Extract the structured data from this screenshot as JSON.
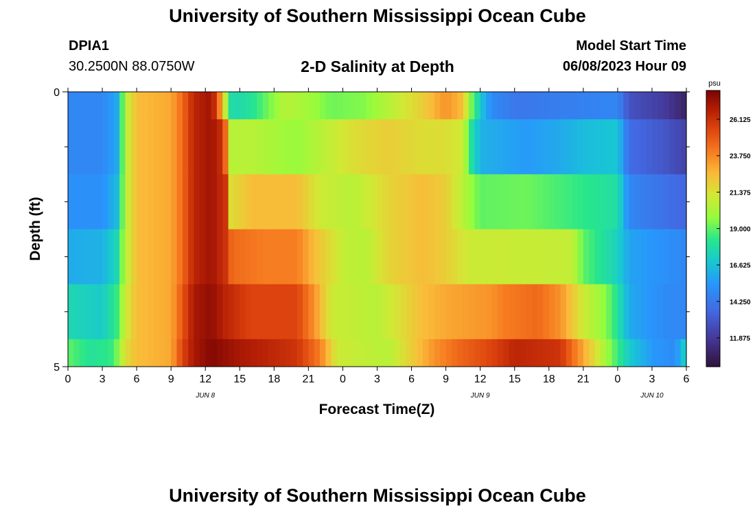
{
  "header": {
    "title": "University of Southern Mississippi Ocean Cube",
    "station_id": "DPIA1",
    "coordinates": "30.2500N  88.0750W",
    "subtitle": "2-D Salinity at Depth",
    "model_start_label": "Model Start Time",
    "model_start_value": "06/08/2023 Hour 09"
  },
  "footer": {
    "title": "University of Southern Mississippi Ocean Cube"
  },
  "chart_data": {
    "type": "heatmap",
    "title": "2-D Salinity at Depth",
    "xlabel": "Forecast Time(Z)",
    "ylabel": "Depth (ft)",
    "x_hours_range": [
      0,
      54
    ],
    "x_tick_hours": [
      0,
      3,
      6,
      9,
      12,
      15,
      18,
      21,
      24,
      27,
      30,
      33,
      36,
      39,
      42,
      45,
      48,
      51,
      54
    ],
    "x_tick_labels": [
      "0",
      "3",
      "6",
      "9",
      "12",
      "15",
      "18",
      "21",
      "0",
      "3",
      "6",
      "9",
      "12",
      "15",
      "18",
      "21",
      "0",
      "3",
      "6"
    ],
    "date_labels": [
      {
        "hour": 12,
        "text": "JUN 8"
      },
      {
        "hour": 36,
        "text": "JUN 9"
      },
      {
        "hour": 51,
        "text": "JUN 10"
      }
    ],
    "y_range": [
      0,
      5
    ],
    "y_tick_labels": [
      "0",
      "5"
    ],
    "depth_layers": 5,
    "colorbar": {
      "unit": "psu",
      "min": 10.0,
      "max": 28.0,
      "tick_values": [
        11.875,
        14.25,
        16.625,
        19.0,
        21.375,
        23.75,
        26.125
      ],
      "tick_labels": [
        "11.875",
        "14.250",
        "16.625",
        "19.000",
        "21.375",
        "23.750",
        "26.125"
      ]
    },
    "salinity_keyframes": [
      [
        [
          0,
          14.8
        ],
        [
          3,
          14.8
        ],
        [
          4.3,
          16.0
        ],
        [
          5,
          20.5
        ],
        [
          6,
          22.5
        ],
        [
          9,
          23.0
        ],
        [
          10,
          24.5
        ],
        [
          11,
          26.5
        ],
        [
          12.5,
          27.2
        ],
        [
          13,
          25.5
        ],
        [
          13.7,
          21.0
        ],
        [
          14.3,
          17.5
        ],
        [
          16,
          18.0
        ],
        [
          19,
          20.5
        ],
        [
          21,
          20.0
        ],
        [
          23,
          19.2
        ],
        [
          26,
          19.5
        ],
        [
          28,
          20.5
        ],
        [
          31,
          22.0
        ],
        [
          33,
          23.5
        ],
        [
          34.5,
          22.5
        ],
        [
          35,
          20.0
        ],
        [
          36,
          17.0
        ],
        [
          37,
          15.0
        ],
        [
          39,
          14.2
        ],
        [
          48,
          14.8
        ],
        [
          49,
          12.8
        ],
        [
          52,
          12.0
        ],
        [
          54,
          10.8
        ]
      ],
      [
        [
          0,
          14.8
        ],
        [
          3,
          14.8
        ],
        [
          4.3,
          16.0
        ],
        [
          5,
          20.5
        ],
        [
          6,
          22.5
        ],
        [
          9,
          23.0
        ],
        [
          10,
          24.5
        ],
        [
          11,
          26.5
        ],
        [
          12.5,
          27.2
        ],
        [
          13.6,
          26.0
        ],
        [
          13.9,
          23.0
        ],
        [
          14.2,
          20.5
        ],
        [
          16,
          20.5
        ],
        [
          20,
          19.8
        ],
        [
          22,
          20.5
        ],
        [
          25,
          21.5
        ],
        [
          28,
          22.0
        ],
        [
          31,
          21.5
        ],
        [
          33,
          21.5
        ],
        [
          34.5,
          21.0
        ],
        [
          35.2,
          18.0
        ],
        [
          36,
          16.2
        ],
        [
          40,
          15.5
        ],
        [
          43,
          16.0
        ],
        [
          45,
          16.5
        ],
        [
          48,
          16.8
        ],
        [
          49,
          13.8
        ],
        [
          52,
          13.0
        ],
        [
          54,
          12.2
        ]
      ],
      [
        [
          0,
          15.2
        ],
        [
          3,
          15.2
        ],
        [
          4.3,
          16.5
        ],
        [
          5,
          20.5
        ],
        [
          6,
          22.5
        ],
        [
          9,
          23.0
        ],
        [
          10,
          24.5
        ],
        [
          11,
          26.5
        ],
        [
          12.5,
          27.2
        ],
        [
          13.8,
          26.0
        ],
        [
          14.2,
          21.5
        ],
        [
          16,
          22.5
        ],
        [
          20,
          22.5
        ],
        [
          22,
          21.0
        ],
        [
          25,
          20.5
        ],
        [
          28,
          21.8
        ],
        [
          31,
          22.5
        ],
        [
          33,
          22.0
        ],
        [
          34.5,
          20.5
        ],
        [
          36,
          19.0
        ],
        [
          40,
          19.2
        ],
        [
          44,
          18.5
        ],
        [
          48,
          17.8
        ],
        [
          49,
          14.8
        ],
        [
          52,
          14.0
        ],
        [
          54,
          13.5
        ]
      ],
      [
        [
          0,
          16.0
        ],
        [
          3,
          16.2
        ],
        [
          4.3,
          17.5
        ],
        [
          5,
          20.5
        ],
        [
          6,
          22.5
        ],
        [
          9,
          23.0
        ],
        [
          10,
          24.5
        ],
        [
          11,
          26.5
        ],
        [
          12.5,
          27.2
        ],
        [
          13.8,
          26.0
        ],
        [
          14.3,
          24.5
        ],
        [
          17,
          24.0
        ],
        [
          20,
          24.0
        ],
        [
          21.5,
          22.5
        ],
        [
          24,
          20.8
        ],
        [
          26,
          20.5
        ],
        [
          28,
          21.8
        ],
        [
          31,
          22.5
        ],
        [
          33,
          22.0
        ],
        [
          35,
          21.0
        ],
        [
          44,
          20.8
        ],
        [
          45,
          19.0
        ],
        [
          48,
          17.2
        ],
        [
          49,
          15.8
        ],
        [
          52,
          15.2
        ],
        [
          54,
          14.8
        ]
      ],
      [
        [
          0,
          17.5
        ],
        [
          3,
          17.0
        ],
        [
          4.3,
          18.5
        ],
        [
          5,
          21.0
        ],
        [
          6,
          22.5
        ],
        [
          9,
          23.0
        ],
        [
          10,
          25.0
        ],
        [
          11,
          27.0
        ],
        [
          12.5,
          27.5
        ],
        [
          13.8,
          26.5
        ],
        [
          16,
          25.5
        ],
        [
          20,
          25.5
        ],
        [
          21.5,
          23.5
        ],
        [
          23,
          21.0
        ],
        [
          27,
          20.5
        ],
        [
          29,
          21.5
        ],
        [
          31,
          22.5
        ],
        [
          33,
          23.0
        ],
        [
          37,
          23.5
        ],
        [
          38,
          24.0
        ],
        [
          41,
          24.5
        ],
        [
          43,
          23.5
        ],
        [
          45,
          21.0
        ],
        [
          47,
          19.5
        ],
        [
          48,
          18.0
        ],
        [
          49,
          16.0
        ],
        [
          52,
          15.0
        ],
        [
          54,
          14.8
        ]
      ],
      [
        [
          0,
          19.0
        ],
        [
          2,
          18.0
        ],
        [
          4,
          18.5
        ],
        [
          5,
          21.5
        ],
        [
          6,
          22.5
        ],
        [
          9,
          23.0
        ],
        [
          10,
          25.5
        ],
        [
          11,
          27.0
        ],
        [
          12.5,
          27.8
        ],
        [
          15,
          27.0
        ],
        [
          20,
          26.0
        ],
        [
          22,
          24.0
        ],
        [
          23.5,
          21.0
        ],
        [
          28,
          20.5
        ],
        [
          30,
          22.0
        ],
        [
          32,
          23.5
        ],
        [
          34,
          24.5
        ],
        [
          37,
          25.5
        ],
        [
          39,
          26.5
        ],
        [
          43,
          26.0
        ],
        [
          45,
          23.0
        ],
        [
          47,
          20.0
        ],
        [
          49,
          17.0
        ],
        [
          51,
          15.5
        ],
        [
          53,
          15.0
        ],
        [
          54,
          17.5
        ]
      ]
    ]
  }
}
